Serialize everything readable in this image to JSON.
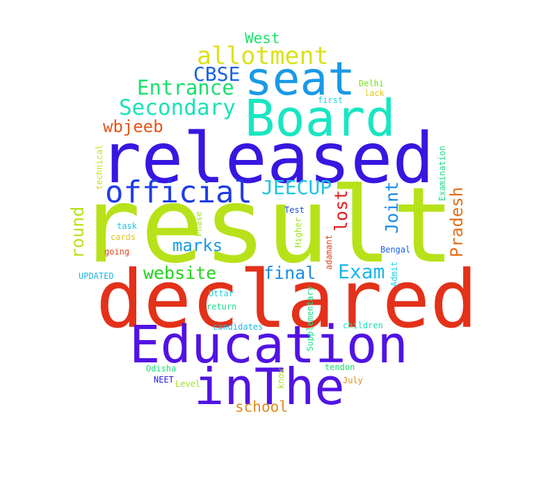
{
  "words": {
    "result": {
      "text": "result",
      "color": "#b7e21a"
    },
    "declared": {
      "text": "declared",
      "color": "#e3311a"
    },
    "released": {
      "text": "released",
      "color": "#3916e0"
    },
    "education": {
      "text": "Education",
      "color": "#5113e4"
    },
    "board": {
      "text": "Board",
      "color": "#19e6c2"
    },
    "inthe": {
      "text": "inThe",
      "color": "#5213e3"
    },
    "seat": {
      "text": "seat",
      "color": "#1a99e6"
    },
    "official": {
      "text": "official",
      "color": "#1e3ce8"
    },
    "allotment": {
      "text": "allotment",
      "color": "#dbe21a"
    },
    "secondary": {
      "text": "Secondary",
      "color": "#19e2b7"
    },
    "entrance": {
      "text": "Entrance",
      "color": "#19e06c"
    },
    "cbse": {
      "text": "CBSE",
      "color": "#1a60e2"
    },
    "jeecup": {
      "text": "JEECUP",
      "color": "#1ac6e2"
    },
    "exam": {
      "text": "Exam",
      "color": "#1ab7e6"
    },
    "website": {
      "text": "website",
      "color": "#22d41a"
    },
    "final": {
      "text": "final",
      "color": "#1a8be6"
    },
    "marks": {
      "text": "marks",
      "color": "#1a99e6"
    },
    "wbjeeb": {
      "text": "wbjeeb",
      "color": "#e2561a"
    },
    "west": {
      "text": "West",
      "color": "#1ae06c"
    },
    "school": {
      "text": "school",
      "color": "#e2881a"
    },
    "lost": {
      "text": "lost",
      "color": "#e21a1a"
    },
    "joint": {
      "text": "Joint",
      "color": "#1a8be6"
    },
    "round": {
      "text": "round",
      "color": "#b7e21a"
    },
    "pradesh": {
      "text": "Pradesh",
      "color": "#e2701a"
    },
    "delhi": {
      "text": "Delhi",
      "color": "#7ae21a"
    },
    "lack": {
      "text": "lack",
      "color": "#e2c61a"
    },
    "first": {
      "text": "first",
      "color": "#1ad6e6"
    },
    "technical": {
      "text": "technical",
      "color": "#c6e21a"
    },
    "examination": {
      "text": "Examination",
      "color": "#1ae080"
    },
    "test": {
      "text": "Test",
      "color": "#1a4ce2"
    },
    "task": {
      "text": "task",
      "color": "#1ac6e2"
    },
    "cards": {
      "text": "cards",
      "color": "#e2c61a"
    },
    "going": {
      "text": "going",
      "color": "#e2441a"
    },
    "phase": {
      "text": "Phase",
      "color": "#a7e21a"
    },
    "higher": {
      "text": "Higher",
      "color": "#9be21a"
    },
    "adamant": {
      "text": "adamant",
      "color": "#e2441a"
    },
    "bengal": {
      "text": "Bengal",
      "color": "#1a60e2"
    },
    "admit": {
      "text": "Admit",
      "color": "#1ad2e2"
    },
    "updated": {
      "text": "UPDATED",
      "color": "#1ab7e6"
    },
    "uttar": {
      "text": "Uttar",
      "color": "#1ad2e2"
    },
    "return": {
      "text": "return",
      "color": "#1ae090"
    },
    "supplementary": {
      "text": "Supplementary",
      "color": "#1ae088"
    },
    "candidates": {
      "text": "candidates",
      "color": "#1ab7e6"
    },
    "children": {
      "text": "children",
      "color": "#1ae0b7"
    },
    "odisha": {
      "text": "Odisha",
      "color": "#1ae07a"
    },
    "tendon": {
      "text": "tendon",
      "color": "#1ae06c"
    },
    "neet": {
      "text": "NEET",
      "color": "#2a1ae2"
    },
    "level": {
      "text": "Level",
      "color": "#9be21a"
    },
    "know": {
      "text": "know",
      "color": "#a7e21a"
    },
    "july": {
      "text": "July",
      "color": "#e2881a"
    }
  }
}
